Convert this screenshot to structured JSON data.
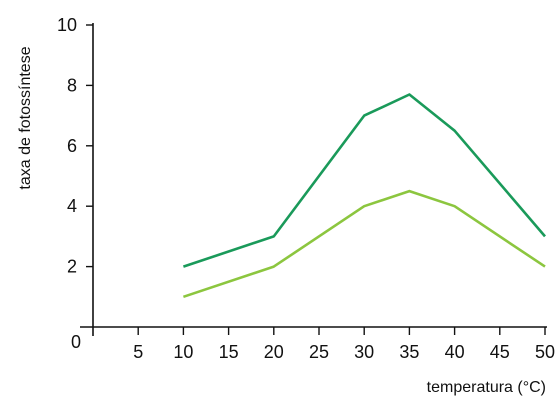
{
  "chart_data": {
    "type": "line",
    "xlabel": "temperatura (°C)",
    "ylabel": "taxa de fotossíntese",
    "xlim": [
      0,
      50
    ],
    "ylim": [
      0,
      10
    ],
    "x_ticks": [
      5,
      10,
      15,
      20,
      25,
      30,
      35,
      40,
      45,
      50
    ],
    "y_ticks": [
      2,
      4,
      6,
      8,
      10
    ],
    "origin_label": "0",
    "grid": false,
    "series": [
      {
        "color": "#1a9a5a",
        "x": [
          10,
          20,
          30,
          35,
          40,
          50
        ],
        "y": [
          2,
          3,
          7,
          7.7,
          6.5,
          3
        ]
      },
      {
        "color": "#8cc63f",
        "x": [
          10,
          20,
          30,
          35,
          40,
          50
        ],
        "y": [
          1,
          2,
          4,
          4.5,
          4,
          2
        ]
      }
    ]
  }
}
